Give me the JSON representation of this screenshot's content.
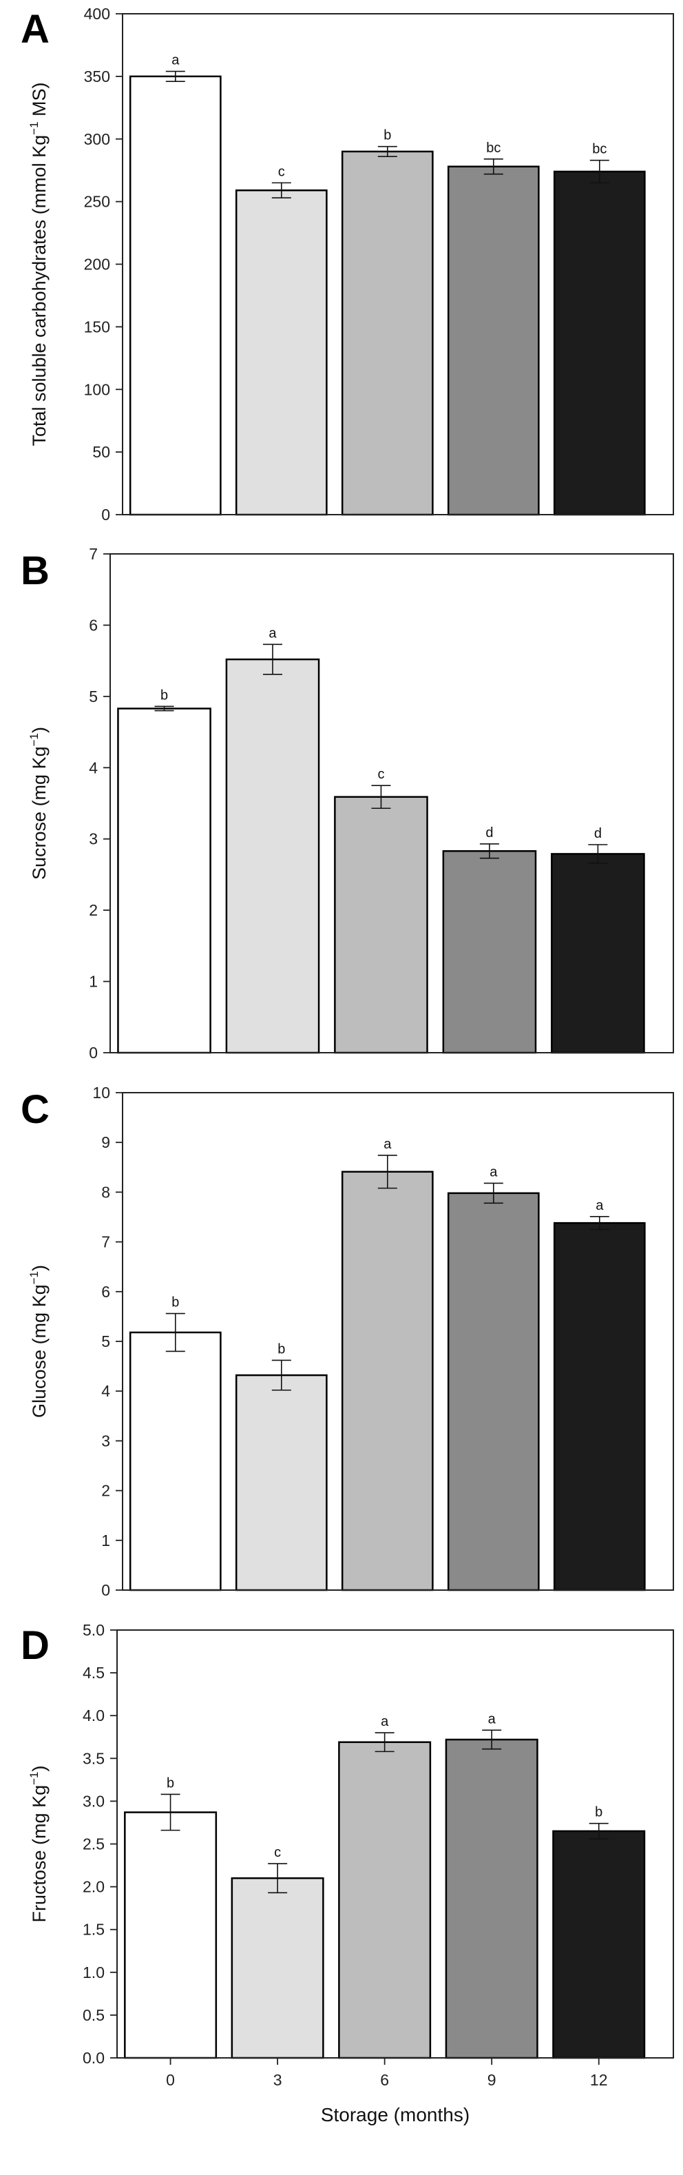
{
  "chart_data": [
    {
      "type": "bar",
      "panel": "A",
      "ylabel": "Total soluble carbohydrates (mmol Kg",
      "ylabel_sup": "−1",
      "ylabel_suffix": " MS)",
      "ylim": [
        0,
        400
      ],
      "yticks": [
        "0",
        "50",
        "100",
        "150",
        "200",
        "250",
        "300",
        "350",
        "400"
      ],
      "categories": [
        "0",
        "3",
        "6",
        "9",
        "12"
      ],
      "values": [
        350,
        259,
        290,
        278,
        274
      ],
      "errors": [
        4,
        6,
        4,
        6,
        9
      ],
      "letters": [
        "a",
        "c",
        "b",
        "bc",
        "bc"
      ]
    },
    {
      "type": "bar",
      "panel": "B",
      "ylabel": "Sucrose (mg Kg",
      "ylabel_sup": "−1",
      "ylabel_suffix": ")",
      "ylim": [
        0,
        7
      ],
      "yticks": [
        "0",
        "1",
        "2",
        "3",
        "4",
        "5",
        "6",
        "7"
      ],
      "categories": [
        "0",
        "3",
        "6",
        "9",
        "12"
      ],
      "values": [
        4.83,
        5.52,
        3.59,
        2.83,
        2.79
      ],
      "errors": [
        0.03,
        0.21,
        0.16,
        0.1,
        0.13
      ],
      "letters": [
        "b",
        "a",
        "c",
        "d",
        "d"
      ]
    },
    {
      "type": "bar",
      "panel": "C",
      "ylabel": "Glucose (mg Kg",
      "ylabel_sup": "−1",
      "ylabel_suffix": ")",
      "ylim": [
        0,
        10
      ],
      "yticks": [
        "0",
        "1",
        "2",
        "3",
        "4",
        "5",
        "6",
        "7",
        "8",
        "9",
        "10"
      ],
      "categories": [
        "0",
        "3",
        "6",
        "9",
        "12"
      ],
      "values": [
        5.18,
        4.32,
        8.41,
        7.98,
        7.38
      ],
      "errors": [
        0.38,
        0.3,
        0.33,
        0.2,
        0.13
      ],
      "letters": [
        "b",
        "b",
        "a",
        "a",
        "a"
      ]
    },
    {
      "type": "bar",
      "panel": "D",
      "ylabel": "Fructose (mg Kg",
      "ylabel_sup": "−1",
      "ylabel_suffix": ")",
      "ylim": [
        0,
        5
      ],
      "yticks": [
        "0.0",
        "0.5",
        "1.0",
        "1.5",
        "2.0",
        "2.5",
        "3.0",
        "3.5",
        "4.0",
        "4.5",
        "5.0"
      ],
      "categories": [
        "0",
        "3",
        "6",
        "9",
        "12"
      ],
      "values": [
        2.87,
        2.1,
        3.69,
        3.72,
        2.65
      ],
      "errors": [
        0.21,
        0.17,
        0.11,
        0.11,
        0.09
      ],
      "letters": [
        "b",
        "c",
        "a",
        "a",
        "b"
      ],
      "xlabel": "Storage (months)"
    }
  ],
  "bar_colors": [
    "#ffffff",
    "#e0e0e0",
    "#bdbdbd",
    "#8a8a8a",
    "#1c1c1c"
  ]
}
